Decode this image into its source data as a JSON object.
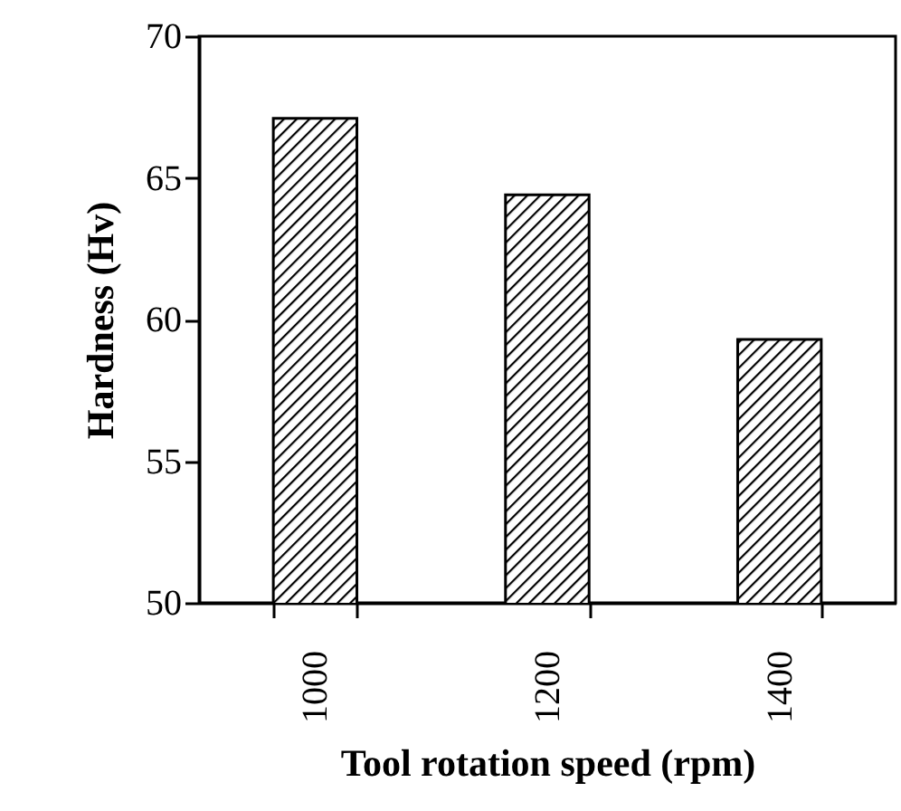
{
  "chart_data": {
    "type": "bar",
    "xlabel": "Tool rotation speed (rpm)",
    "ylabel": "Hardness (Hv)",
    "categories": [
      "1000",
      "1200",
      "1400"
    ],
    "values": [
      67.1,
      64.4,
      59.3
    ],
    "color": "#000000",
    "ylim": [
      50,
      70
    ],
    "yticks": [
      50,
      55,
      60,
      65,
      70
    ],
    "grid": false
  }
}
